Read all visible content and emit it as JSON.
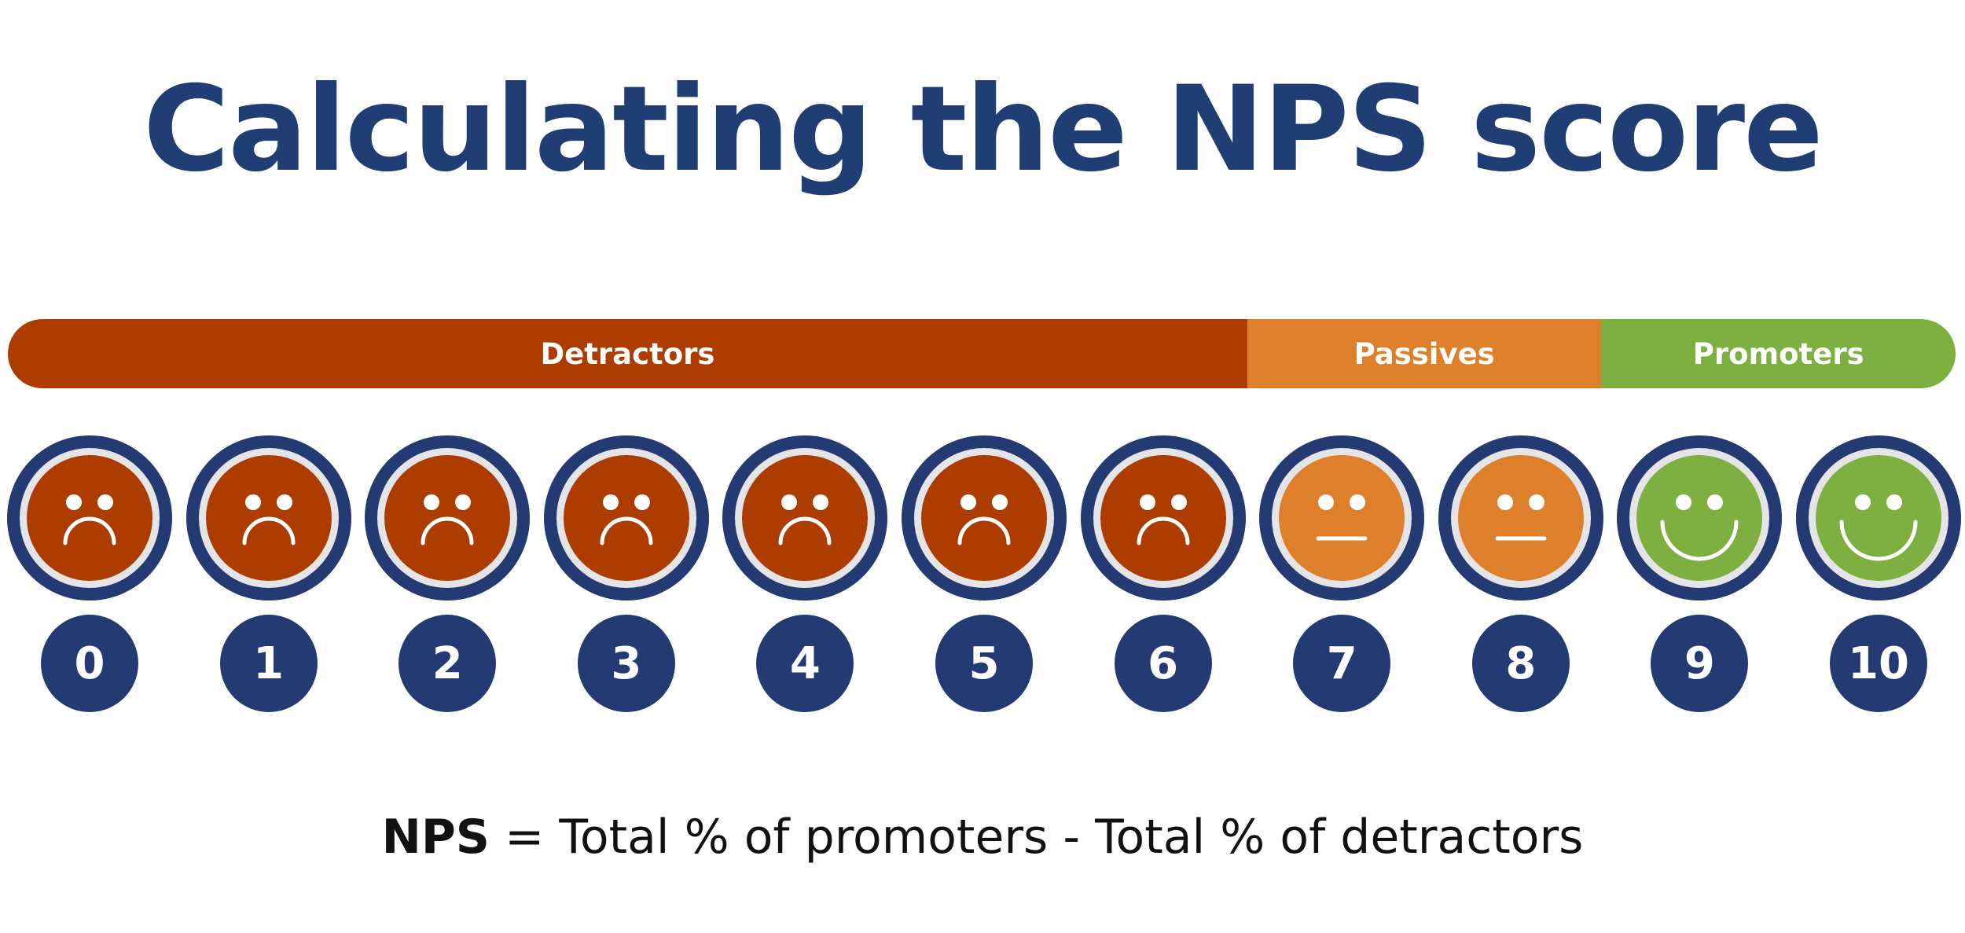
{
  "title": "Calculating the NPS score",
  "colors": {
    "title": "#213e74",
    "ring": "#233b72",
    "inner_ring": "#e5e5e8",
    "detractor": "#ad3c01",
    "passive": "#de7f2b",
    "promoter": "#7daf41",
    "number_badge": "#233b72",
    "formula_text": "#111111"
  },
  "categories": [
    {
      "label": "Detractors",
      "scores": [
        0,
        1,
        2,
        3,
        4,
        5,
        6
      ],
      "color": "#ad3c01",
      "face": "sad"
    },
    {
      "label": "Passives",
      "scores": [
        7,
        8
      ],
      "color": "#de7f2b",
      "face": "neutral"
    },
    {
      "label": "Promoters",
      "scores": [
        9,
        10
      ],
      "color": "#7daf41",
      "face": "happy"
    }
  ],
  "scale": [
    {
      "score": "0",
      "category": "Detractors",
      "face": "sad-face-icon"
    },
    {
      "score": "1",
      "category": "Detractors",
      "face": "sad-face-icon"
    },
    {
      "score": "2",
      "category": "Detractors",
      "face": "sad-face-icon"
    },
    {
      "score": "3",
      "category": "Detractors",
      "face": "sad-face-icon"
    },
    {
      "score": "4",
      "category": "Detractors",
      "face": "sad-face-icon"
    },
    {
      "score": "5",
      "category": "Detractors",
      "face": "sad-face-icon"
    },
    {
      "score": "6",
      "category": "Detractors",
      "face": "sad-face-icon"
    },
    {
      "score": "7",
      "category": "Passives",
      "face": "neutral-face-icon"
    },
    {
      "score": "8",
      "category": "Passives",
      "face": "neutral-face-icon"
    },
    {
      "score": "9",
      "category": "Promoters",
      "face": "happy-face-icon"
    },
    {
      "score": "10",
      "category": "Promoters",
      "face": "happy-face-icon"
    }
  ],
  "formula": {
    "term": "NPS",
    "expression": " = Total % of promoters - Total % of detractors"
  }
}
